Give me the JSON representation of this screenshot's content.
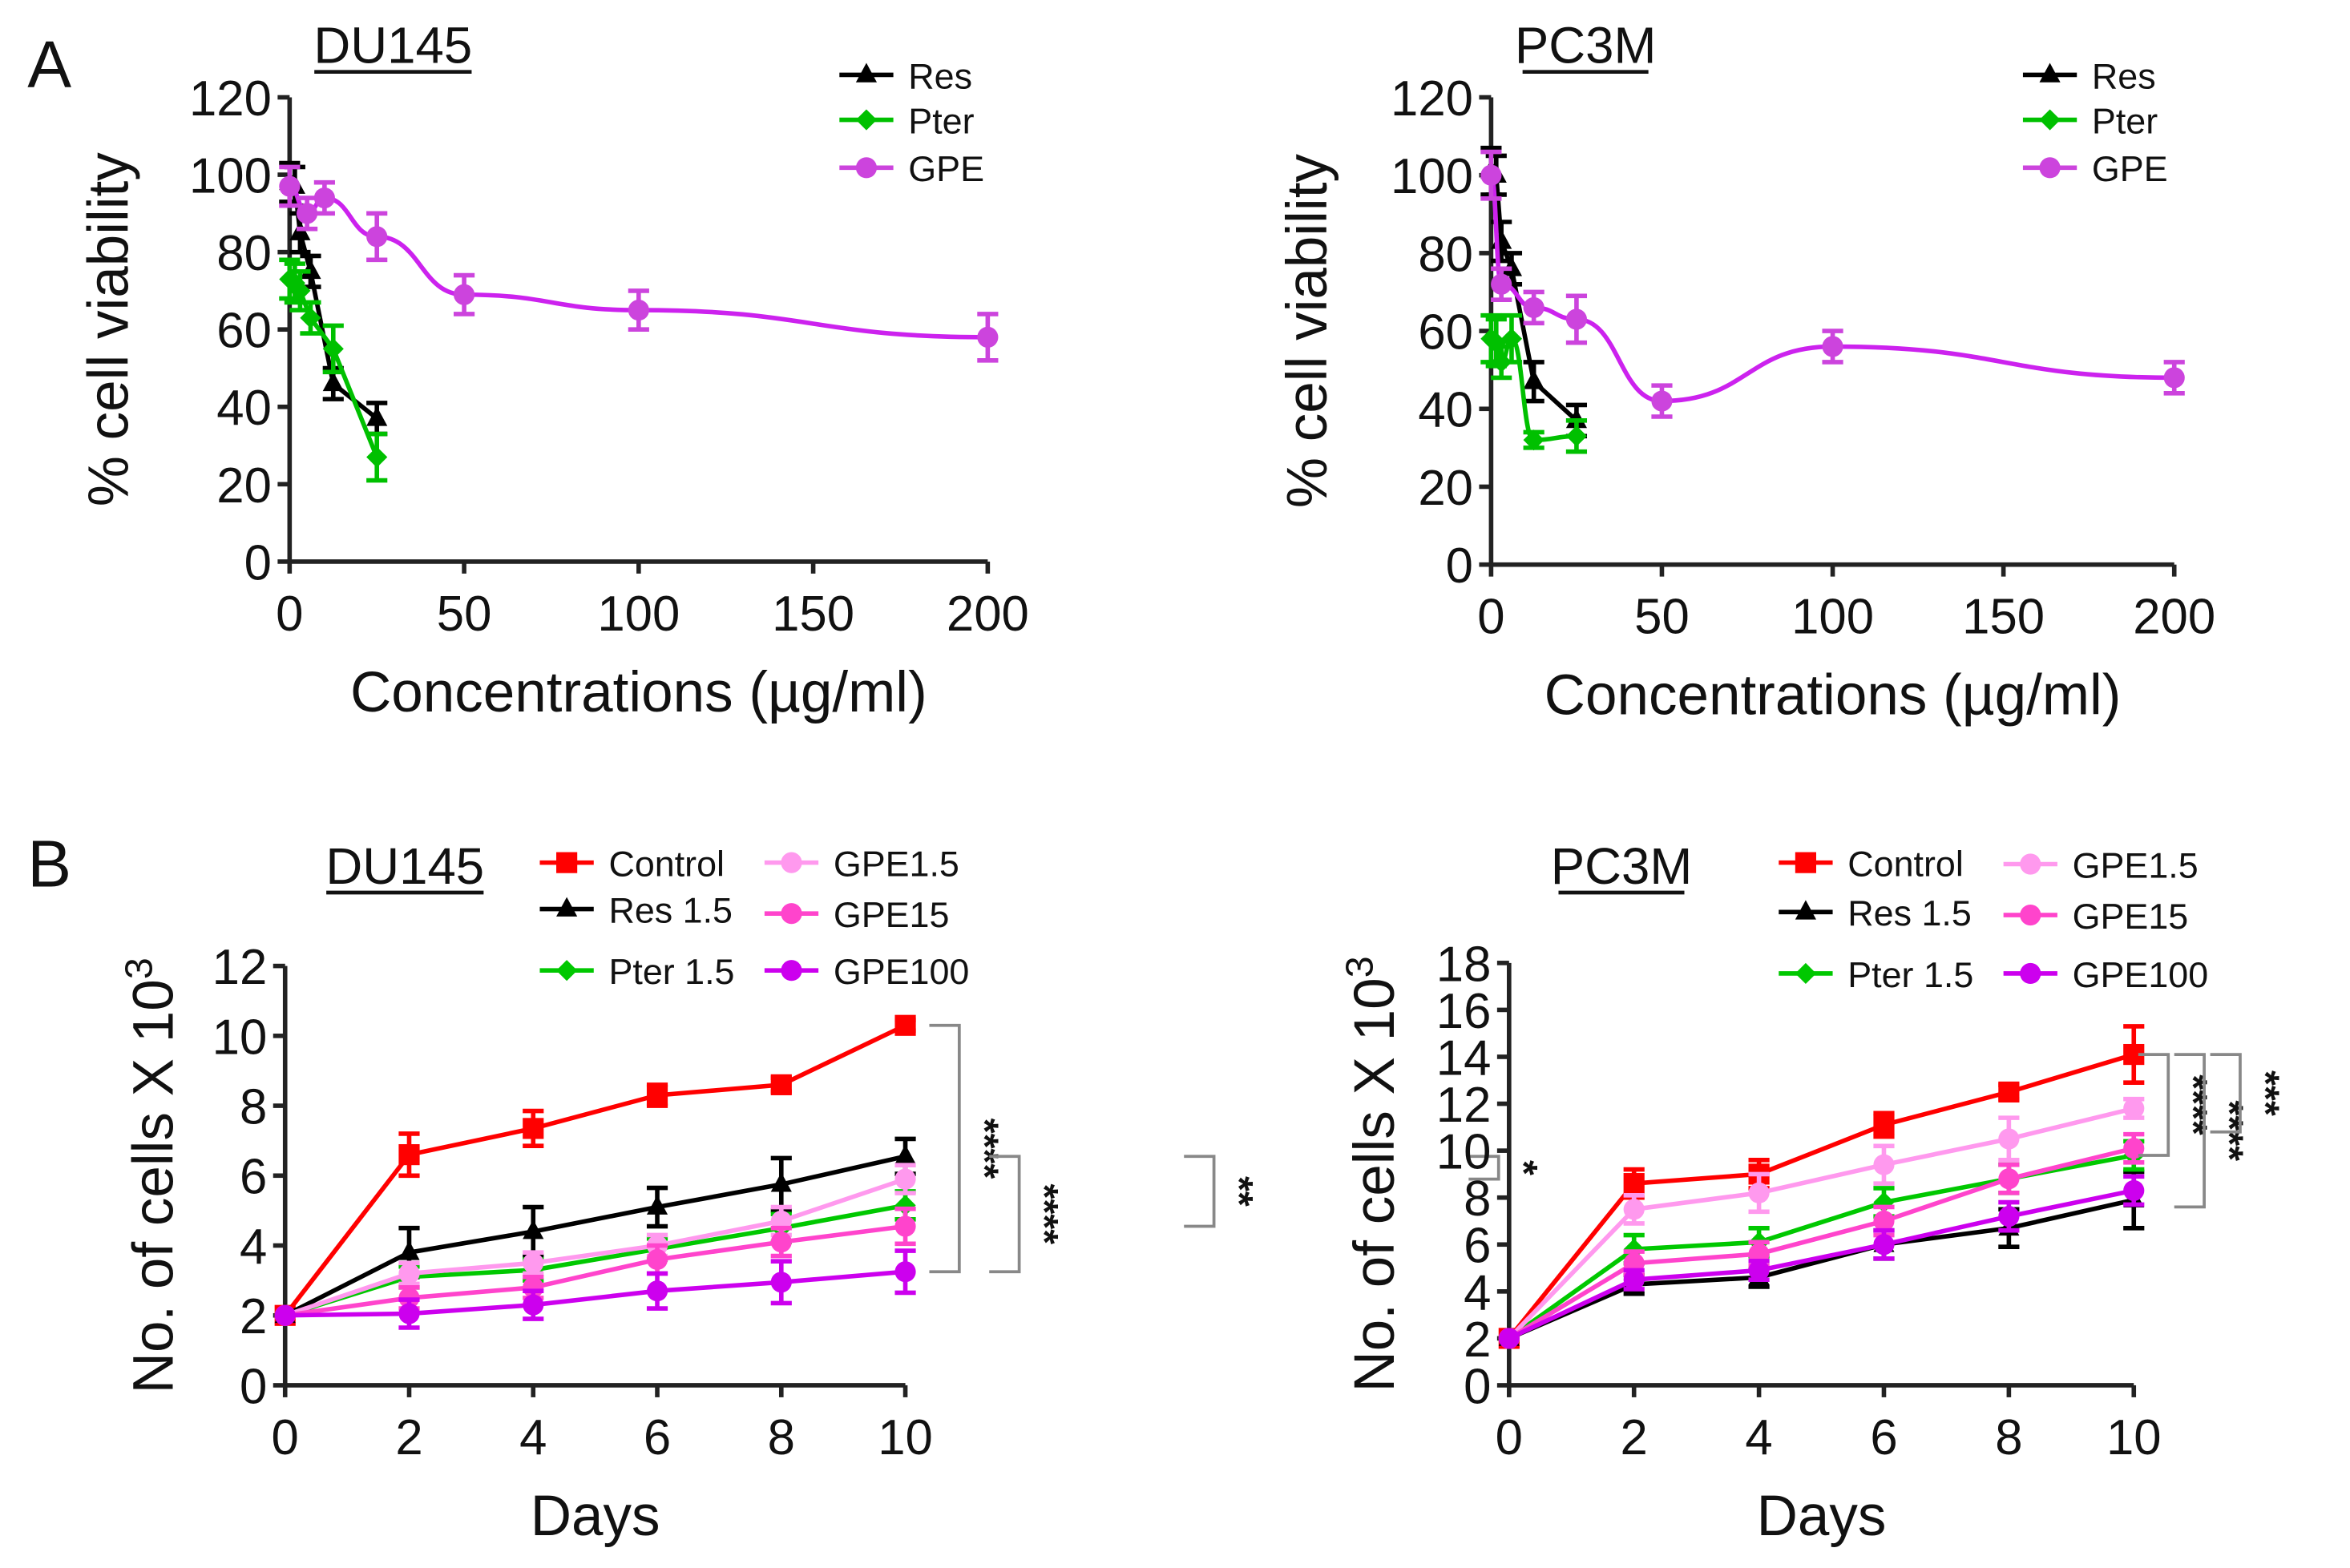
{
  "panels": {
    "a": "A",
    "b": "B"
  },
  "colors": {
    "Res": "#000000",
    "Pter": "#00c000",
    "GPE": "#cc44dd",
    "GPE_fit": "#cc22ee",
    "Control": "#ff0000",
    "Res 1.5": "#000000",
    "Pter 1.5": "#00c800",
    "GPE1.5": "#ff99ee",
    "GPE15": "#ff44cc",
    "GPE100": "#cc00ee"
  },
  "chart_data": [
    {
      "id": "a-du145",
      "type": "scatter",
      "title": "DU145",
      "xlabel": "Concentrations (µg/ml)",
      "ylabel": "% cell viability",
      "xlim": [
        0,
        200
      ],
      "ylim": [
        0,
        120
      ],
      "xticks": [
        0,
        50,
        100,
        150,
        200
      ],
      "yticks": [
        0,
        20,
        40,
        60,
        80,
        100,
        120
      ],
      "legend": "top-right",
      "grid": false,
      "series": [
        {
          "name": "Res",
          "marker": "triangle",
          "x": [
            0,
            1.5,
            3,
            6,
            12.5,
            25
          ],
          "y": [
            98,
            97,
            85,
            75,
            46,
            37
          ],
          "err": [
            5,
            5,
            5,
            4,
            4,
            4
          ],
          "line": "connect"
        },
        {
          "name": "Pter",
          "marker": "diamond",
          "x": [
            0,
            1.5,
            3,
            6,
            12.5,
            25
          ],
          "y": [
            73,
            72,
            70,
            63,
            55,
            27
          ],
          "err": [
            5,
            5,
            5,
            4,
            6,
            6
          ],
          "line": "connect"
        },
        {
          "name": "GPE",
          "marker": "circle",
          "x": [
            0,
            5,
            10,
            25,
            50,
            100,
            200
          ],
          "y": [
            97,
            90,
            94,
            84,
            69,
            65,
            58
          ],
          "err": [
            5,
            4,
            4,
            6,
            5,
            5,
            6
          ],
          "line": "fit"
        }
      ]
    },
    {
      "id": "a-pc3m",
      "type": "scatter",
      "title": "PC3M",
      "xlabel": "Concentrations (µg/ml)",
      "ylabel": "% cell viability",
      "xlim": [
        0,
        200
      ],
      "ylim": [
        0,
        120
      ],
      "xticks": [
        0,
        50,
        100,
        150,
        200
      ],
      "yticks": [
        0,
        20,
        40,
        60,
        80,
        100,
        120
      ],
      "legend": "top-right",
      "grid": false,
      "series": [
        {
          "name": "Res",
          "marker": "triangle",
          "x": [
            0,
            1.5,
            3,
            6,
            12.5,
            25
          ],
          "y": [
            101,
            100,
            83,
            76,
            47,
            37
          ],
          "err": [
            6,
            5,
            5,
            4,
            5,
            4
          ],
          "line": "connect"
        },
        {
          "name": "Pter",
          "marker": "diamond",
          "x": [
            0,
            1.5,
            3,
            6,
            12.5,
            25
          ],
          "y": [
            58,
            57,
            52,
            58,
            32,
            33
          ],
          "err": [
            6,
            6,
            4,
            6,
            2,
            4
          ],
          "line": "fit"
        },
        {
          "name": "GPE",
          "marker": "circle",
          "x": [
            0,
            3,
            12.5,
            25,
            50,
            100,
            200
          ],
          "y": [
            100,
            72,
            66,
            63,
            42,
            56,
            48
          ],
          "err": [
            6,
            4,
            4,
            6,
            4,
            4,
            4
          ],
          "line": "fit"
        }
      ]
    },
    {
      "id": "b-du145",
      "type": "line",
      "title": "DU145",
      "xlabel": "Days",
      "ylabel": "No. of cells X 10",
      "ylabel_sup": "3",
      "xlim": [
        0,
        10
      ],
      "ylim": [
        0,
        12
      ],
      "xticks": [
        0,
        2,
        4,
        6,
        8,
        10
      ],
      "yticks": [
        0,
        2,
        4,
        6,
        8,
        10,
        12
      ],
      "legend": "top",
      "grid": false,
      "x": [
        0,
        2,
        4,
        6,
        8,
        10
      ],
      "series": [
        {
          "name": "Control",
          "marker": "square",
          "y": [
            2,
            6.6,
            7.35,
            8.3,
            8.6,
            10.3
          ],
          "err": [
            0,
            0.6,
            0.5,
            0.3,
            0.2,
            0.15
          ]
        },
        {
          "name": "Res 1.5",
          "marker": "triangle",
          "y": [
            2,
            3.8,
            4.4,
            5.1,
            5.75,
            6.55
          ],
          "err": [
            0,
            0.7,
            0.7,
            0.55,
            0.75,
            0.5
          ]
        },
        {
          "name": "Pter 1.5",
          "marker": "diamond",
          "y": [
            2,
            3.1,
            3.3,
            3.9,
            4.5,
            5.15
          ],
          "err": [
            0,
            0.3,
            0.3,
            0.3,
            0.4,
            0.4
          ]
        },
        {
          "name": "GPE1.5",
          "marker": "circle",
          "y": [
            2,
            3.2,
            3.5,
            4.0,
            4.7,
            5.9
          ],
          "err": [
            0,
            0.3,
            0.3,
            0.3,
            0.4,
            0.4
          ]
        },
        {
          "name": "GPE15",
          "marker": "circle",
          "y": [
            2,
            2.5,
            2.8,
            3.6,
            4.1,
            4.55
          ],
          "err": [
            0,
            0.3,
            0.3,
            0.4,
            0.4,
            0.5
          ]
        },
        {
          "name": "GPE100",
          "marker": "circle",
          "y": [
            2,
            2.05,
            2.3,
            2.7,
            2.95,
            3.25
          ],
          "err": [
            0,
            0.4,
            0.4,
            0.5,
            0.6,
            0.6
          ]
        }
      ],
      "annotations": [
        {
          "label": "****",
          "from": 10.3,
          "to": 3.25
        },
        {
          "label": "****",
          "from": 6.55,
          "to": 3.25
        },
        {
          "label": "**",
          "from": 6.55,
          "to": 4.55
        },
        {
          "label": "*",
          "from": 6.55,
          "to": 5.9
        }
      ]
    },
    {
      "id": "b-pc3m",
      "type": "line",
      "title": "PC3M",
      "xlabel": "Days",
      "ylabel": "No. of cells X 10",
      "ylabel_sup": "3",
      "xlim": [
        0,
        10
      ],
      "ylim": [
        0,
        18
      ],
      "xticks": [
        0,
        2,
        4,
        6,
        8,
        10
      ],
      "yticks": [
        0,
        2,
        4,
        6,
        8,
        10,
        12,
        14,
        16,
        18
      ],
      "legend": "top",
      "grid": false,
      "x": [
        0,
        2,
        4,
        6,
        8,
        10
      ],
      "series": [
        {
          "name": "Control",
          "marker": "square",
          "y": [
            2,
            8.6,
            9.0,
            11.1,
            12.5,
            14.1
          ],
          "err": [
            0,
            0.6,
            0.6,
            0.5,
            0.3,
            1.2
          ]
        },
        {
          "name": "Res 1.5",
          "marker": "triangle",
          "y": [
            2,
            4.3,
            4.6,
            6.0,
            6.7,
            7.9
          ],
          "err": [
            0,
            0.4,
            0.4,
            0.6,
            0.8,
            1.2
          ]
        },
        {
          "name": "Pter 1.5",
          "marker": "diamond",
          "y": [
            2,
            5.8,
            6.1,
            7.8,
            8.8,
            9.8
          ],
          "err": [
            0,
            0.6,
            0.6,
            0.6,
            0.6,
            0.6
          ]
        },
        {
          "name": "GPE1.5",
          "marker": "circle",
          "y": [
            2,
            7.5,
            8.2,
            9.4,
            10.5,
            11.8
          ],
          "err": [
            0,
            0.6,
            0.8,
            0.8,
            0.9,
            0.4
          ]
        },
        {
          "name": "GPE15",
          "marker": "circle",
          "y": [
            2,
            5.2,
            5.6,
            7.0,
            8.8,
            10.1
          ],
          "err": [
            0,
            0.5,
            0.5,
            0.6,
            0.6,
            0.6
          ]
        },
        {
          "name": "GPE100",
          "marker": "circle",
          "y": [
            2,
            4.5,
            4.9,
            6.0,
            7.2,
            8.3
          ],
          "err": [
            0,
            0.4,
            0.4,
            0.6,
            0.6,
            0.6
          ]
        }
      ],
      "annotations": [
        {
          "label": "****",
          "from": 14.1,
          "to": 9.8
        },
        {
          "label": "****",
          "from": 14.1,
          "to": 7.6
        },
        {
          "label": "***",
          "from": 14.1,
          "to": 10.8
        }
      ]
    }
  ]
}
